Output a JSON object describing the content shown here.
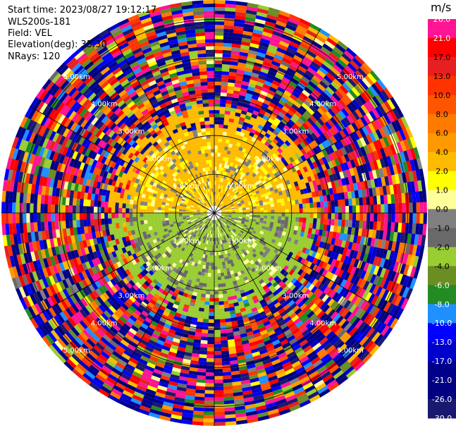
{
  "header": {
    "start_time": "Start time: 2023/08/27 19:12:17",
    "station": "WLS200s-181",
    "field": "Field: VEL",
    "elevation": "Elevation(deg): 35.30",
    "nrays": "NRays: 120"
  },
  "colorbar": {
    "unit": "m/s",
    "ticks": [
      "26.0",
      "21.0",
      "17.0",
      "13.0",
      "10.0",
      "8.0",
      "6.0",
      "4.0",
      "2.0",
      "1.0",
      "0.0",
      "-1.0",
      "-2.0",
      "-4.0",
      "-6.0",
      "-8.0",
      "-10.0",
      "-13.0",
      "-17.0",
      "-21.0",
      "-26.0",
      "-30.0"
    ],
    "colors": [
      "#ff1493",
      "#ff0000",
      "#e62020",
      "#ff3300",
      "#ff5500",
      "#ff7a00",
      "#ff9900",
      "#ffbb00",
      "#ffff00",
      "#ffff99",
      "#808080",
      "#696969",
      "#9acd32",
      "#6b8e23",
      "#228b22",
      "#1e90ff",
      "#0000ff",
      "#0000cd",
      "#00008b",
      "#000080",
      "#191970"
    ]
  },
  "chart_data": {
    "type": "heatmap",
    "subtype": "polar PPI (plan position indicator)",
    "field": "VEL",
    "unit": "m/s",
    "nrays": 120,
    "elevation_deg": 35.3,
    "range_rings_km": [
      1.0,
      2.0,
      3.0,
      4.0,
      5.0
    ],
    "range_ring_labels": [
      "1.00km",
      "2.00km",
      "3.00km",
      "4.00km",
      "5.00km"
    ],
    "value_range": [
      -30.0,
      26.0
    ],
    "pattern": {
      "near_range_north_half": "positive velocities ~2 to 4 m/s (yellow)",
      "near_range_south_half": "negative velocities ~-2 to -4 m/s (olive green)",
      "far_range": "noisy values spanning full color scale"
    }
  }
}
